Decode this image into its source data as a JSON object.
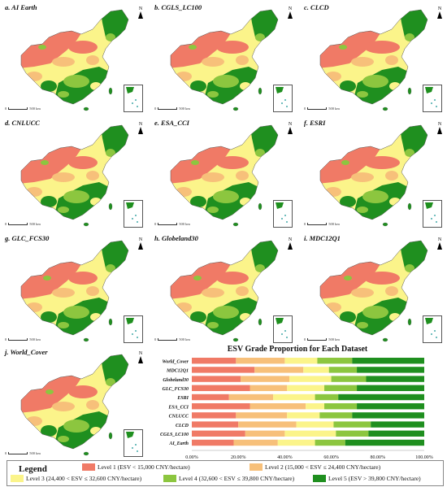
{
  "panels": [
    {
      "label": "a. AI Earth"
    },
    {
      "label": "b. CGLS_LC100"
    },
    {
      "label": "c. CLCD"
    },
    {
      "label": "d. CNLUCC"
    },
    {
      "label": "e. ESA_CCI"
    },
    {
      "label": "f. ESRI"
    },
    {
      "label": "g. GLC_FCS30"
    },
    {
      "label": "h. Globeland30"
    },
    {
      "label": "i. MDC12Q1"
    },
    {
      "label": "j. World_Cover"
    }
  ],
  "scale_label": "500 km",
  "north_label": "N",
  "colors": {
    "level1": "#f07a66",
    "level2": "#f7c07a",
    "level3": "#fbf48a",
    "level4": "#8cc63f",
    "level5": "#1f8f1f"
  },
  "legend": {
    "title": "Legend",
    "items": [
      {
        "label": "Level 1 (ESV < 15,000 CNY/hectare)"
      },
      {
        "label": "Level 2 (15,000 < ESV ≤ 24,400 CNY/hectare)"
      },
      {
        "label": "Level 3 (24,400 < ESV ≤ 32,600 CNY/hectare)"
      },
      {
        "label": "Level 4 (32,600 < ESV ≤ 39,800 CNY/hectare)"
      },
      {
        "label": "Level 5 (ESV > 39,800 CNY/hectare)"
      }
    ]
  },
  "chart_data": {
    "type": "bar",
    "stacked": true,
    "orientation": "horizontal",
    "title": "ESV  Grade Proportion for Each Dataset",
    "categories": [
      "World_Cover",
      "MDC12Q1",
      "Globeland30",
      "GLC_FCS30",
      "ESRI",
      "ESA_CCI",
      "CNLUCC",
      "CLCD",
      "CGLS_LC100",
      "AI_Earth"
    ],
    "series": [
      {
        "name": "Level 1",
        "values": [
          19,
          27,
          21,
          25,
          16,
          25,
          19,
          20,
          23,
          18
        ]
      },
      {
        "name": "Level 2",
        "values": [
          21,
          21,
          21,
          16,
          19,
          24,
          22,
          25,
          17,
          19
        ]
      },
      {
        "name": "Level 3",
        "values": [
          14,
          11,
          18,
          16,
          18,
          8,
          14,
          16,
          22,
          16
        ]
      },
      {
        "name": "Level 4",
        "values": [
          15,
          12,
          15,
          14,
          10,
          14,
          14,
          16,
          14,
          13
        ]
      },
      {
        "name": "Level 5",
        "values": [
          31,
          29,
          25,
          29,
          37,
          29,
          31,
          23,
          24,
          34
        ]
      }
    ],
    "xlim": [
      0,
      100
    ],
    "xticks": [
      "0.00%",
      "20.00%",
      "40.00%",
      "60.00%",
      "80.00%",
      "100.00%"
    ],
    "grid": false
  }
}
